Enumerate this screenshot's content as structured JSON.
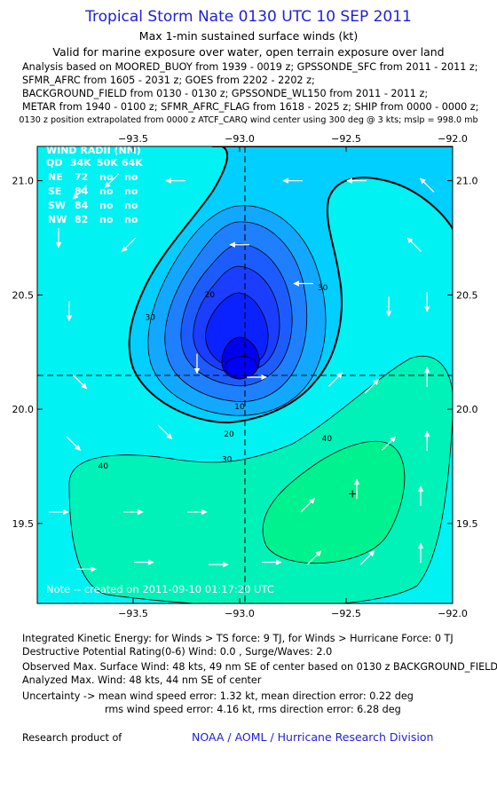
{
  "header": {
    "title": "Tropical Storm Nate 0130 UTC 10 SEP 2011",
    "subtitle1": "Max 1-min sustained surface winds (kt)",
    "subtitle2": "Valid for marine exposure over water, open terrain exposure over land",
    "analysis_lines": [
      "Analysis based on MOORED_BUOY from 1939 - 0019 z; GPSSONDE_SFC from 2011 - 2011 z;",
      "SFMR_AFRC from 1605 - 2031 z; GOES from 2202 - 2202 z;",
      "BACKGROUND_FIELD from 0130 - 0130 z; GPSSONDE_WL150 from 2011 - 2011 z;",
      "METAR from 1940 - 0100 z; SFMR_AFRC_FLAG from 1618 - 2025 z; SHIP from 0000 - 0000 z;"
    ],
    "position_note": "0130 z position extrapolated from 0000 z ATCF_CARQ wind center using 300 deg @ 3 kts; mslp = 998.0 mb"
  },
  "wind_radii": {
    "title": "WIND RADII (NM)",
    "header": [
      "QD",
      "34K",
      "50K",
      "64K"
    ],
    "rows": [
      [
        "NE",
        "72",
        "no",
        "no"
      ],
      [
        "SE",
        "84",
        "no",
        "no"
      ],
      [
        "SW",
        "84",
        "no",
        "no"
      ],
      [
        "NW",
        "82",
        "no",
        "no"
      ]
    ]
  },
  "chart_note": "Note -- created on 2011-09-10 01:17:20 UTC",
  "chart_data": {
    "type": "contour",
    "field": "Max 1-min sustained surface winds (kt)",
    "xlim": [
      -93.95,
      -92.0
    ],
    "ylim": [
      19.15,
      21.15
    ],
    "x_ticks": [
      -93.5,
      -93.0,
      -92.5,
      -92.0
    ],
    "x_tick_labels": [
      "−93.5",
      "−93.0",
      "−92.5",
      "−92.0"
    ],
    "y_ticks": [
      19.5,
      20.0,
      20.5,
      21.0
    ],
    "y_tick_labels": [
      "19.5",
      "20.0",
      "20.5",
      "21.0"
    ],
    "center": {
      "lon": -92.96,
      "lat": 20.14
    },
    "max_wind_marker": {
      "lon": -92.47,
      "lat": 19.63
    },
    "contour_levels": [
      10,
      15,
      20,
      25,
      30,
      34,
      40,
      45
    ],
    "contour_labels": [
      {
        "text": "30",
        "lon": -93.42,
        "lat": 20.39
      },
      {
        "text": "20",
        "lon": -93.14,
        "lat": 20.49
      },
      {
        "text": "30",
        "lon": -92.61,
        "lat": 20.52
      },
      {
        "text": "10",
        "lon": -93.0,
        "lat": 20.0
      },
      {
        "text": "20",
        "lon": -93.05,
        "lat": 19.88
      },
      {
        "text": "30",
        "lon": -93.06,
        "lat": 19.77
      },
      {
        "text": "40",
        "lon": -92.59,
        "lat": 19.86
      },
      {
        "text": "40",
        "lon": -93.64,
        "lat": 19.74
      }
    ],
    "colors": {
      "background": "#00f2f2",
      "lt15": "#0000ff",
      "c15": "#1c5cff",
      "c20": "#1e80ff",
      "c25": "#12a8ff",
      "c30": "#00cfff",
      "c40": "#00f2b9",
      "c45": "#00f28f"
    },
    "wind_vectors": [
      {
        "lon": -93.75,
        "lat": 20.95,
        "dir": "SW"
      },
      {
        "lon": -93.6,
        "lat": 21.0,
        "dir": "SW"
      },
      {
        "lon": -93.3,
        "lat": 21.0,
        "dir": "W"
      },
      {
        "lon": -92.75,
        "lat": 21.0,
        "dir": "W"
      },
      {
        "lon": -92.45,
        "lat": 21.0,
        "dir": "W"
      },
      {
        "lon": -92.12,
        "lat": 20.98,
        "dir": "NW"
      },
      {
        "lon": -93.85,
        "lat": 20.75,
        "dir": "S"
      },
      {
        "lon": -93.52,
        "lat": 20.72,
        "dir": "SW"
      },
      {
        "lon": -92.18,
        "lat": 20.72,
        "dir": "NW"
      },
      {
        "lon": -93.8,
        "lat": 20.43,
        "dir": "S"
      },
      {
        "lon": -92.7,
        "lat": 20.55,
        "dir": "W"
      },
      {
        "lon": -92.3,
        "lat": 20.45,
        "dir": "S"
      },
      {
        "lon": -92.12,
        "lat": 20.47,
        "dir": "S"
      },
      {
        "lon": -93.0,
        "lat": 20.72,
        "dir": "W"
      },
      {
        "lon": -93.2,
        "lat": 20.2,
        "dir": "S"
      },
      {
        "lon": -92.92,
        "lat": 20.14,
        "dir": "E"
      },
      {
        "lon": -93.75,
        "lat": 20.12,
        "dir": "SE"
      },
      {
        "lon": -92.55,
        "lat": 20.13,
        "dir": "NE"
      },
      {
        "lon": -92.38,
        "lat": 20.1,
        "dir": "NE"
      },
      {
        "lon": -92.12,
        "lat": 20.14,
        "dir": "N"
      },
      {
        "lon": -93.78,
        "lat": 19.85,
        "dir": "SE"
      },
      {
        "lon": -93.35,
        "lat": 19.9,
        "dir": "SE"
      },
      {
        "lon": -92.3,
        "lat": 19.85,
        "dir": "NE"
      },
      {
        "lon": -92.12,
        "lat": 19.86,
        "dir": "N"
      },
      {
        "lon": -93.85,
        "lat": 19.55,
        "dir": "E"
      },
      {
        "lon": -93.5,
        "lat": 19.55,
        "dir": "E"
      },
      {
        "lon": -93.2,
        "lat": 19.55,
        "dir": "E"
      },
      {
        "lon": -92.68,
        "lat": 19.58,
        "dir": "NE"
      },
      {
        "lon": -92.45,
        "lat": 19.65,
        "dir": "N"
      },
      {
        "lon": -92.15,
        "lat": 19.62,
        "dir": "N"
      },
      {
        "lon": -93.72,
        "lat": 19.3,
        "dir": "E"
      },
      {
        "lon": -93.45,
        "lat": 19.33,
        "dir": "E"
      },
      {
        "lon": -93.1,
        "lat": 19.32,
        "dir": "E"
      },
      {
        "lon": -92.85,
        "lat": 19.33,
        "dir": "E"
      },
      {
        "lon": -92.65,
        "lat": 19.35,
        "dir": "NE"
      },
      {
        "lon": -92.4,
        "lat": 19.35,
        "dir": "NE"
      },
      {
        "lon": -92.15,
        "lat": 19.37,
        "dir": "N"
      }
    ]
  },
  "footer": {
    "ike": "Integrated Kinetic Energy:  for Winds > TS force: 9 TJ,  for Winds > Hurricane Force: 0 TJ",
    "dpr": "Destructive Potential Rating(0-6)   Wind: 0.0 , Surge/Waves: 2.0",
    "observed": "Observed Max. Surface Wind: 48 kts, 49 nm SE of center based on 0130 z BACKGROUND_FIELD",
    "analyzed": "Analyzed Max. Wind: 48 kts, 44 nm SE of center",
    "uncertainty1": "Uncertainty -> mean wind speed error: 1.32 kt,   mean direction error: 0.22 deg",
    "uncertainty2": "rms wind speed error: 4.16 kt,   rms direction error: 6.28 deg",
    "research": "Research product of",
    "org": "NOAA / AOML / Hurricane Research Division"
  }
}
